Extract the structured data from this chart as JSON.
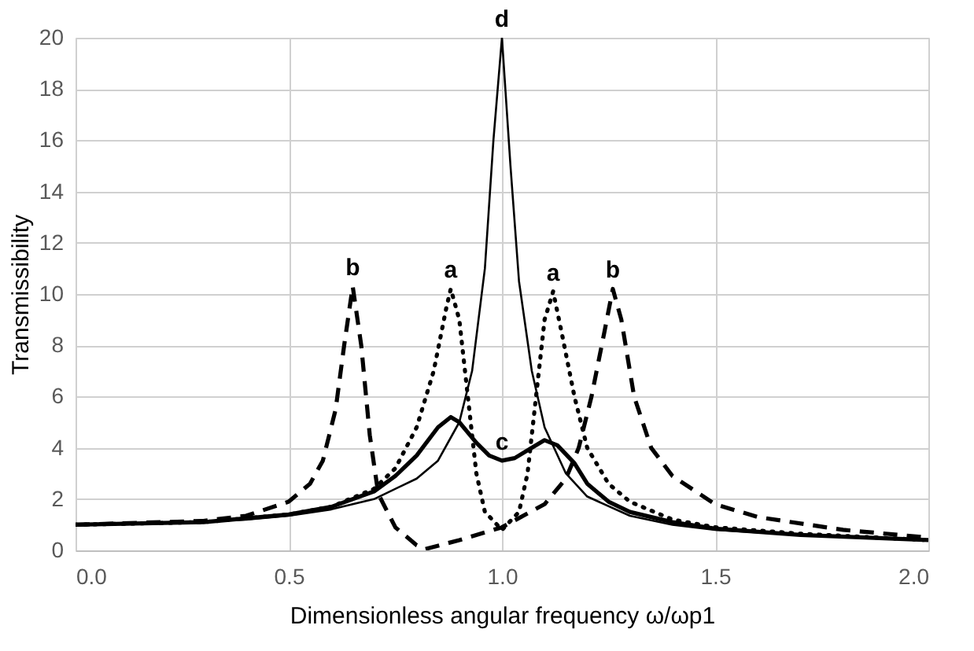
{
  "chart_data": {
    "type": "line",
    "xlabel": "Dimensionless angular  frequency ω/ωp1",
    "ylabel": "Transmissibility",
    "xlim": [
      0,
      2
    ],
    "xticks": [
      {
        "value": 0,
        "label": "0.0"
      },
      0.5,
      {
        "value": 1,
        "label": "1.0"
      },
      1.5,
      {
        "value": 2,
        "label": "2.0"
      }
    ],
    "ylim": [
      0,
      20
    ],
    "yticks": [
      0,
      2,
      4,
      6,
      8,
      10,
      12,
      14,
      16,
      18,
      20
    ],
    "grid": true,
    "marker": "none",
    "series": [
      {
        "color": "#000000",
        "line_style": "dotted",
        "x": [
          0,
          0.3,
          0.5,
          0.6,
          0.7,
          0.75,
          0.8,
          0.84,
          0.87,
          0.88,
          0.9,
          0.92,
          0.94,
          0.96,
          1.0,
          1.04,
          1.06,
          1.08,
          1.1,
          1.12,
          1.14,
          1.17,
          1.2,
          1.25,
          1.3,
          1.4,
          1.5,
          1.7,
          2.0
        ],
        "values": [
          1,
          1.1,
          1.4,
          1.7,
          2.4,
          3.2,
          4.8,
          7,
          9.5,
          10.2,
          9,
          6,
          3,
          1.5,
          0.8,
          1.5,
          3,
          6,
          9,
          10.1,
          8.5,
          6,
          4,
          2.6,
          1.9,
          1.2,
          0.9,
          0.65,
          0.4
        ]
      },
      {
        "color": "#000000",
        "line_style": "dashed",
        "x": [
          0,
          0.3,
          0.4,
          0.5,
          0.55,
          0.58,
          0.61,
          0.63,
          0.65,
          0.67,
          0.69,
          0.71,
          0.75,
          0.8,
          0.82,
          0.9,
          1.0,
          1.1,
          1.15,
          1.18,
          1.21,
          1.24,
          1.26,
          1.28,
          1.31,
          1.35,
          1.4,
          1.5,
          1.6,
          1.8,
          2.0
        ],
        "values": [
          1,
          1.15,
          1.35,
          1.9,
          2.6,
          3.5,
          5.5,
          8,
          10.3,
          8,
          4.5,
          2.2,
          0.9,
          0.2,
          0.05,
          0.4,
          0.9,
          1.8,
          2.8,
          4,
          6,
          8.5,
          10.2,
          9,
          6,
          4,
          2.9,
          1.8,
          1.3,
          0.8,
          0.5
        ]
      },
      {
        "color": "#000000",
        "line_style": "solid",
        "x": [
          0,
          0.3,
          0.5,
          0.6,
          0.7,
          0.75,
          0.8,
          0.85,
          0.88,
          0.9,
          0.94,
          0.97,
          1.0,
          1.03,
          1.07,
          1.1,
          1.13,
          1.17,
          1.2,
          1.25,
          1.3,
          1.4,
          1.5,
          1.7,
          2.0
        ],
        "values": [
          1,
          1.1,
          1.4,
          1.7,
          2.3,
          2.9,
          3.7,
          4.8,
          5.2,
          5.0,
          4.2,
          3.7,
          3.5,
          3.6,
          4.0,
          4.3,
          4.1,
          3.4,
          2.6,
          1.9,
          1.5,
          1.1,
          0.85,
          0.6,
          0.4
        ]
      },
      {
        "color": "#000000",
        "line_style": "solid",
        "x": [
          0,
          0.2,
          0.4,
          0.5,
          0.6,
          0.7,
          0.8,
          0.85,
          0.9,
          0.93,
          0.96,
          0.98,
          1.0,
          1.02,
          1.04,
          1.07,
          1.1,
          1.15,
          1.2,
          1.3,
          1.4,
          1.5,
          1.7,
          2.0
        ],
        "values": [
          1,
          1.05,
          1.2,
          1.35,
          1.6,
          2.0,
          2.8,
          3.5,
          5,
          7,
          11,
          16,
          20,
          15,
          10.5,
          7,
          4.8,
          3,
          2.1,
          1.35,
          1.0,
          0.8,
          0.6,
          0.4
        ]
      }
    ],
    "annotations": [
      {
        "text": "a",
        "x": 0.88,
        "y": 10.2
      },
      {
        "text": "a",
        "x": 1.12,
        "y": 10.1
      },
      {
        "text": "b",
        "x": 0.65,
        "y": 10.3
      },
      {
        "text": "b",
        "x": 1.26,
        "y": 10.2
      },
      {
        "text": "c",
        "x": 1.0,
        "y": 3.5
      },
      {
        "text": "d",
        "x": 1.0,
        "y": 20
      }
    ]
  }
}
